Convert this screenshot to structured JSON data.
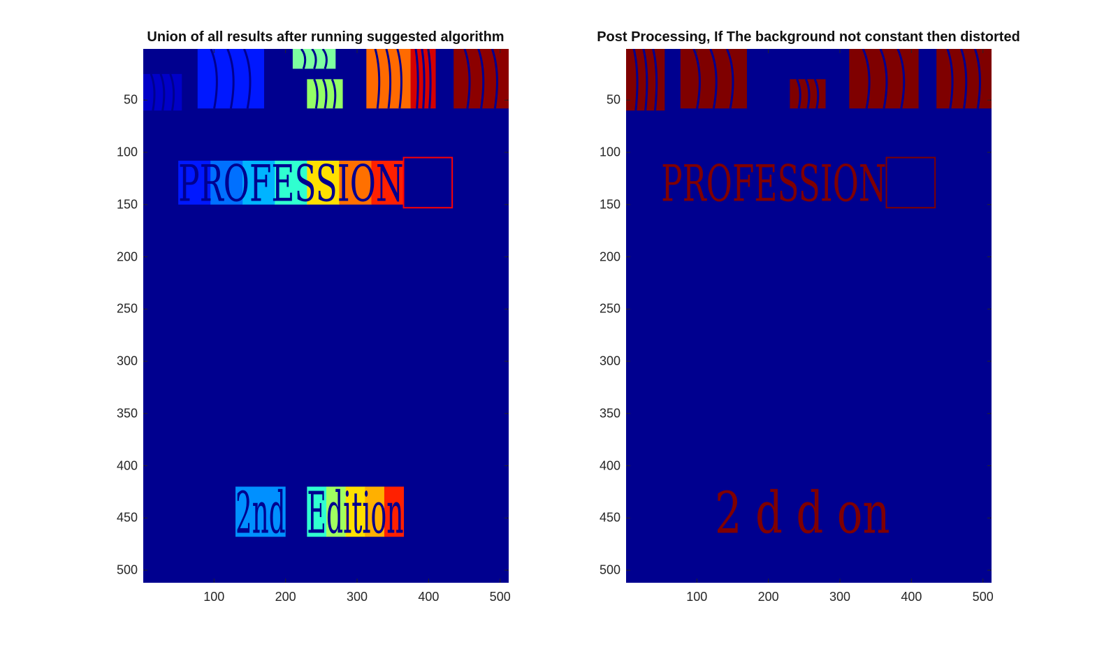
{
  "chart_data": [
    {
      "type": "heatmap",
      "title": "Union of all results after running suggested algorithm",
      "xlabel": "",
      "ylabel": "",
      "xlim": [
        1,
        512
      ],
      "ylim": [
        512,
        1
      ],
      "xticks": [
        100,
        200,
        300,
        400,
        500
      ],
      "yticks": [
        50,
        100,
        150,
        200,
        250,
        300,
        350,
        400,
        450,
        500
      ],
      "background": "#00008f",
      "colormap": "jet",
      "regions": [
        {
          "label": "image-block-1",
          "x": [
            1,
            55
          ],
          "y": [
            25,
            60
          ],
          "color": "#0000c8"
        },
        {
          "label": "image-block-2",
          "x": [
            77,
            170
          ],
          "y": [
            1,
            58
          ],
          "color": "#0018ff"
        },
        {
          "label": "image-block-3",
          "x": [
            210,
            270
          ],
          "y": [
            1,
            20
          ],
          "color": "#7dffa0"
        },
        {
          "label": "image-block-4",
          "x": [
            230,
            280
          ],
          "y": [
            30,
            58
          ],
          "color": "#94ff66"
        },
        {
          "label": "image-block-5",
          "x": [
            313,
            375
          ],
          "y": [
            1,
            58
          ],
          "color": "#ff6a00"
        },
        {
          "label": "image-block-6",
          "x": [
            375,
            410
          ],
          "y": [
            1,
            58
          ],
          "color": "#d40000"
        },
        {
          "label": "image-block-7",
          "x": [
            435,
            512
          ],
          "y": [
            1,
            58
          ],
          "color": "#8c0000"
        },
        {
          "label": "word-PROFESSION",
          "x": [
            50,
            365
          ],
          "y": [
            108,
            150
          ],
          "colors": [
            "#0018ff",
            "#0070ff",
            "#00b4ff",
            "#30ffd0",
            "#ffe000",
            "#ff7000",
            "#ff2000"
          ],
          "text": "PROFESSION"
        },
        {
          "label": "word-2nd",
          "x": [
            130,
            200
          ],
          "y": [
            420,
            468
          ],
          "color": "#0090ff",
          "text": "2nd"
        },
        {
          "label": "word-Edition",
          "x": [
            230,
            365
          ],
          "y": [
            420,
            468
          ],
          "colors": [
            "#30ffd0",
            "#a0ff60",
            "#ffe000",
            "#ffb000",
            "#ff2000"
          ],
          "text": "Edition"
        }
      ],
      "outlines": [
        {
          "label": "box-outline",
          "x": [
            365,
            433
          ],
          "y": [
            105,
            153
          ],
          "color": "#ff0000"
        }
      ]
    },
    {
      "type": "heatmap",
      "title": "Post Processing, If The background not constant then distorted",
      "xlabel": "",
      "ylabel": "",
      "xlim": [
        1,
        512
      ],
      "ylim": [
        512,
        1
      ],
      "xticks": [
        100,
        200,
        300,
        400,
        500
      ],
      "yticks": [
        50,
        100,
        150,
        200,
        250,
        300,
        350,
        400,
        450,
        500
      ],
      "background": "#00008f",
      "colormap": "binary",
      "regions": [
        {
          "label": "image-block-1",
          "x": [
            1,
            55
          ],
          "y": [
            1,
            60
          ],
          "color": "#7f0000"
        },
        {
          "label": "image-block-2",
          "x": [
            77,
            170
          ],
          "y": [
            1,
            58
          ],
          "color": "#7f0000"
        },
        {
          "label": "image-block-3",
          "x": [
            230,
            280
          ],
          "y": [
            30,
            58
          ],
          "color": "#7f0000"
        },
        {
          "label": "image-block-4",
          "x": [
            313,
            410
          ],
          "y": [
            1,
            58
          ],
          "color": "#7f0000"
        },
        {
          "label": "image-block-5",
          "x": [
            435,
            512
          ],
          "y": [
            1,
            58
          ],
          "color": "#7f0000"
        },
        {
          "label": "word-PROFESSION",
          "x": [
            50,
            365
          ],
          "y": [
            108,
            150
          ],
          "color": "#7f0000",
          "text": "PROFESSION"
        },
        {
          "label": "word-fragments",
          "x": [
            125,
            370
          ],
          "y": [
            420,
            468
          ],
          "color": "#7f0000",
          "text": "2 d   d   on"
        }
      ],
      "outlines": [
        {
          "label": "box-outline",
          "x": [
            365,
            433
          ],
          "y": [
            105,
            153
          ],
          "color": "#7f0000"
        }
      ]
    }
  ]
}
